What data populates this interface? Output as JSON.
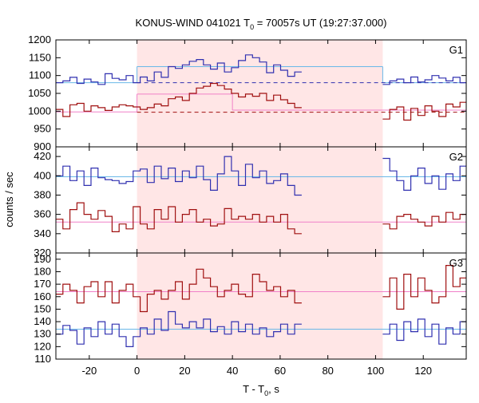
{
  "chart_data": {
    "type": "line",
    "title_parts": {
      "pre": "KONUS-WIND 041021 T",
      "sub": "0",
      "post": " = 70057s UT (19:27:37.000)"
    },
    "ylabel": "counts / sec",
    "xlabel_parts": {
      "pre": "T - T",
      "sub": "0",
      "post": ", s"
    },
    "xlim": [
      -34,
      138
    ],
    "x_ticks": [
      -20,
      0,
      20,
      40,
      60,
      80,
      100,
      120
    ],
    "shaded_interval": [
      0,
      103
    ],
    "colors": {
      "blue": "#3030b0",
      "red": "#a01010",
      "cyan": "#6ab8e8",
      "pink": "#f080c8",
      "shade": "#ffe6e6"
    },
    "panels": [
      {
        "label": "G1",
        "ylim": [
          900,
          1200
        ],
        "y_ticks": [
          900,
          950,
          1000,
          1050,
          1100,
          1150,
          1200
        ],
        "series": [
          {
            "color": "blue",
            "segments": [
              {
                "x0": -34,
                "dx": 2.944,
                "values": [
                  1080,
                  1085,
                  1095,
                  1078,
                  1090,
                  1082,
                  1075,
                  1105,
                  1092,
                  1088,
                  1100,
                  1080,
                  1096,
                  1085,
                  1110,
                  1095,
                  1125,
                  1120,
                  1130,
                  1140,
                  1145,
                  1130,
                  1118,
                  1135,
                  1110,
                  1122,
                  1142,
                  1158,
                  1150,
                  1138,
                  1108,
                  1130,
                  1115,
                  1098,
                  1110
                ]
              },
              {
                "x0": 103,
                "dx": 2.944,
                "values": [
                  1075,
                  1085,
                  1090,
                  1080,
                  1096,
                  1082,
                  1088,
                  1100,
                  1093,
                  1085,
                  1095,
                  1080
                ]
              }
            ]
          },
          {
            "color": "red",
            "segments": [
              {
                "x0": -34,
                "dx": 2.944,
                "values": [
                  1005,
                  985,
                  1018,
                  1022,
                  1000,
                  1015,
                  1010,
                  1002,
                  1012,
                  1018,
                  1015,
                  1012,
                  1005,
                  1010,
                  1020,
                  1015,
                  1035,
                  1040,
                  1030,
                  1050,
                  1065,
                  1070,
                  1078,
                  1072,
                  1062,
                  1050,
                  1040,
                  1048,
                  1042,
                  1050,
                  1030,
                  1045,
                  1032,
                  1022,
                  1010
                ]
              },
              {
                "x0": 103,
                "dx": 2.944,
                "values": [
                  978,
                  1005,
                  1012,
                  975,
                  1008,
                  988,
                  1015,
                  1000,
                  985,
                  1020,
                  1012,
                  1025
                ]
              }
            ]
          }
        ],
        "levels": [
          {
            "color": "cyan",
            "dash": false,
            "segments": [
              [
                -34,
                0,
                1080
              ],
              [
                0,
                103,
                1125
              ],
              [
                103,
                138,
                1080
              ]
            ]
          },
          {
            "color": "blue",
            "dash": true,
            "segments": [
              [
                0,
                138,
                1080
              ]
            ]
          },
          {
            "color": "pink",
            "dash": false,
            "segments": [
              [
                -34,
                0,
                998
              ],
              [
                0,
                40,
                1048
              ],
              [
                40,
                138,
                1003
              ]
            ]
          },
          {
            "color": "red",
            "dash": true,
            "segments": [
              [
                0,
                138,
                997
              ]
            ]
          }
        ]
      },
      {
        "label": "G2",
        "ylim": [
          320,
          430
        ],
        "y_ticks": [
          320,
          340,
          360,
          380,
          400,
          420
        ],
        "series": [
          {
            "color": "blue",
            "segments": [
              {
                "x0": -34,
                "dx": 2.944,
                "values": [
                  400,
                  410,
                  395,
                  405,
                  390,
                  408,
                  398,
                  396,
                  395,
                  392,
                  394,
                  405,
                  407,
                  393,
                  410,
                  397,
                  408,
                  394,
                  405,
                  398,
                  410,
                  396,
                  385,
                  402,
                  420,
                  405,
                  390,
                  412,
                  398,
                  405,
                  392,
                  395,
                  402,
                  390,
                  380
                ]
              },
              {
                "x0": 103,
                "dx": 2.944,
                "values": [
                  418,
                  405,
                  395,
                  385,
                  400,
                  408,
                  392,
                  400,
                  386,
                  402,
                  395,
                  410
                ]
              }
            ]
          },
          {
            "color": "red",
            "segments": [
              {
                "x0": -34,
                "dx": 2.944,
                "values": [
                  355,
                  345,
                  365,
                  372,
                  360,
                  355,
                  364,
                  358,
                  342,
                  350,
                  345,
                  368,
                  350,
                  345,
                  365,
                  355,
                  368,
                  352,
                  360,
                  365,
                  352,
                  355,
                  348,
                  350,
                  366,
                  355,
                  358,
                  355,
                  360,
                  352,
                  358,
                  352,
                  360,
                  345,
                  340
                ]
              },
              {
                "x0": 103,
                "dx": 2.944,
                "values": [
                  350,
                  345,
                  358,
                  360,
                  355,
                  352,
                  348,
                  358,
                  352,
                  362,
                  355,
                  360
                ]
              }
            ]
          }
        ],
        "levels": [
          {
            "color": "cyan",
            "dash": false,
            "segments": [
              [
                -34,
                138,
                399
              ]
            ]
          },
          {
            "color": "pink",
            "dash": false,
            "segments": [
              [
                -34,
                138,
                352
              ]
            ]
          }
        ]
      },
      {
        "label": "G3",
        "ylim": [
          110,
          195
        ],
        "y_ticks": [
          110,
          120,
          130,
          140,
          150,
          160,
          170,
          180,
          190
        ],
        "series": [
          {
            "color": "red",
            "segments": [
              {
                "x0": -34,
                "dx": 2.944,
                "values": [
                  162,
                  170,
                  165,
                  155,
                  168,
                  172,
                  160,
                  172,
                  155,
                  165,
                  170,
                  160,
                  148,
                  162,
                  165,
                  158,
                  165,
                  172,
                  158,
                  170,
                  182,
                  175,
                  168,
                  160,
                  165,
                  170,
                  162,
                  160,
                  178,
                  172,
                  165,
                  168,
                  160,
                  165,
                  155
                ]
              },
              {
                "x0": 103,
                "dx": 2.944,
                "values": [
                  160,
                  175,
                  150,
                  178,
                  160,
                  175,
                  165,
                  155,
                  160,
                  185,
                  168,
                  175
                ]
              }
            ]
          },
          {
            "color": "blue",
            "segments": [
              {
                "x0": -34,
                "dx": 2.944,
                "values": [
                  130,
                  137,
                  133,
                  122,
                  135,
                  128,
                  140,
                  130,
                  138,
                  128,
                  120,
                  128,
                  135,
                  130,
                  142,
                  133,
                  148,
                  138,
                  135,
                  140,
                  135,
                  142,
                  132,
                  136,
                  130,
                  140,
                  132,
                  138,
                  130,
                  135,
                  128,
                  132,
                  138,
                  130,
                  138
                ]
              },
              {
                "x0": 103,
                "dx": 2.944,
                "values": [
                  130,
                  138,
                  125,
                  140,
                  132,
                  142,
                  128,
                  138,
                  122,
                  135,
                  130,
                  140
                ]
              }
            ]
          }
        ],
        "levels": [
          {
            "color": "pink",
            "dash": false,
            "segments": [
              [
                -34,
                138,
                164
              ]
            ]
          },
          {
            "color": "cyan",
            "dash": false,
            "segments": [
              [
                -34,
                138,
                134
              ]
            ]
          }
        ]
      }
    ]
  }
}
